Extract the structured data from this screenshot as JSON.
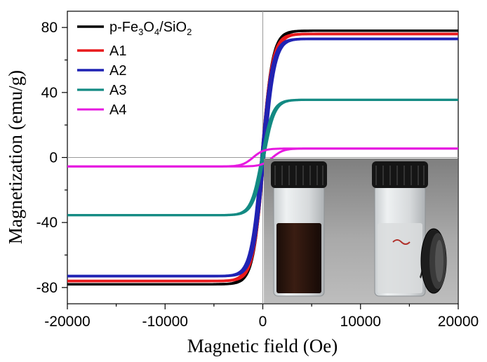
{
  "chart_data": {
    "type": "line",
    "title": "",
    "xlabel": "Magnetic field (Oe)",
    "ylabel": "Magnetization (emu/g)",
    "xlim": [
      -20000,
      20000
    ],
    "ylim": [
      -90,
      90
    ],
    "xticks": [
      -20000,
      -10000,
      0,
      10000,
      20000
    ],
    "yticks": [
      -80,
      -40,
      0,
      40,
      80
    ],
    "grid": false,
    "legend_position": "top-left",
    "series": [
      {
        "name": "p-Fe3O4/SiO2",
        "label_main": "p-Fe",
        "label_sub1": "3",
        "label_mid": "O",
        "label_sub2": "4",
        "label_tail": "/SiO",
        "label_sub3": "2",
        "color": "#000000",
        "ms": 78,
        "width": 3.4,
        "coercive": 120
      },
      {
        "name": "A1",
        "color": "#e8191c",
        "ms": 76,
        "width": 3.6,
        "coercive": 130
      },
      {
        "name": "A2",
        "color": "#1f22b4",
        "ms": 73,
        "width": 3.6,
        "coercive": 130
      },
      {
        "name": "A3",
        "color": "#138a83",
        "ms": 35.5,
        "width": 3.2,
        "coercive": 110
      },
      {
        "name": "A4",
        "color": "#e619e0",
        "ms": 5.5,
        "width": 3.0,
        "coercive": 1000
      }
    ],
    "inset": {
      "description": "photo of two vials: dispersion and magnetic separation"
    }
  }
}
